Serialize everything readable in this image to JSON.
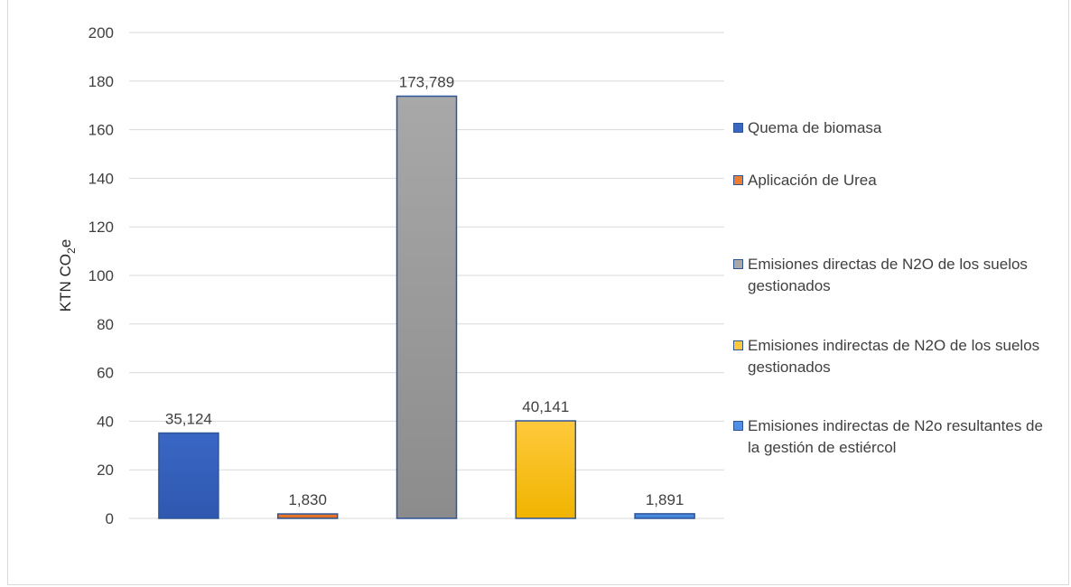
{
  "chart_data": {
    "type": "bar",
    "ylabel": "KTN CO",
    "ylabel_sub": "2",
    "ylabel_suffix": "e",
    "ylim": [
      0,
      200
    ],
    "yticks": [
      0,
      20,
      40,
      60,
      80,
      100,
      120,
      140,
      160,
      180,
      200
    ],
    "grid": true,
    "legend_position": "right",
    "series": [
      {
        "name": "Quema de biomasa",
        "value": 35.124,
        "label": "35,124",
        "color": "#3a67c4",
        "color2": "#2f58b0",
        "border": "#2f5597"
      },
      {
        "name": "Aplicación de Urea",
        "value": 1.83,
        "label": "1,830",
        "color": "#ed7d31",
        "color2": "#d96a1e",
        "border": "#2f5597"
      },
      {
        "name": "Emisiones directas de N2O de los suelos gestionados",
        "value": 173.789,
        "label": "173,789",
        "color": "#a8a8a8",
        "color2": "#8c8c8c",
        "border": "#2f5597"
      },
      {
        "name": "Emisiones indirectas de N2O de los suelos gestionados",
        "value": 40.141,
        "label": "40,141",
        "color": "#ffc93c",
        "color2": "#f0b400",
        "border": "#2f5597"
      },
      {
        "name": "Emisiones indirectas de N2o resultantes de la gestión de estiércol",
        "value": 1.891,
        "label": "1,891",
        "color": "#4f8fe6",
        "color2": "#3f7fd6",
        "border": "#2f5597"
      }
    ]
  }
}
